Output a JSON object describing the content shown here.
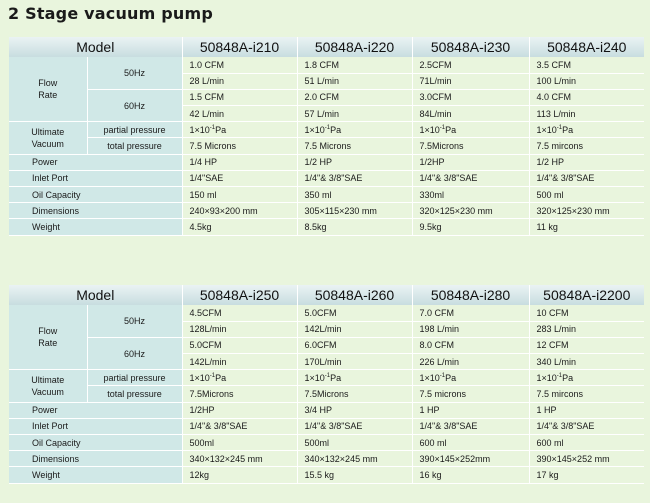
{
  "page_title": "2 Stage  vacuum pump",
  "tables": [
    {
      "header": {
        "model_label": "Model",
        "models": [
          "50848A-i210",
          "50848A-i220",
          "50848A-i230",
          "50848A-i240"
        ]
      },
      "flow_rate": {
        "label_line1": "Flow",
        "label_line2": "Rate",
        "rows": [
          {
            "freq": "50Hz",
            "cfm": [
              "1.0 CFM",
              "1.8 CFM",
              "2.5CFM",
              "3.5 CFM"
            ],
            "lmin": [
              "28 L/min",
              "51 L/min",
              "71L/min",
              "100 L/min"
            ]
          },
          {
            "freq": "60Hz",
            "cfm": [
              "1.5 CFM",
              "2.0 CFM",
              "3.0CFM",
              "4.0 CFM"
            ],
            "lmin": [
              "42 L/min",
              "57 L/min",
              "84L/min",
              "113 L/min"
            ]
          }
        ]
      },
      "ultimate_vacuum": {
        "label_line1": "Ultimate",
        "label_line2": "Vacuum",
        "partial_label": "partial pressure",
        "partial": [
          {
            "base": "1×10",
            "exp": "-1",
            "unit": "Pa"
          },
          {
            "base": "1×10",
            "exp": "-1",
            "unit": "Pa"
          },
          {
            "base": "1×10",
            "exp": "-1",
            "unit": "Pa"
          },
          {
            "base": "1×10",
            "exp": "-1",
            "unit": "Pa"
          }
        ],
        "total_label": "total pressure",
        "total": [
          "7.5 Microns",
          "7.5 Microns",
          "7.5Microns",
          "7.5 mircons"
        ]
      },
      "rows": [
        {
          "label": "Power",
          "values": [
            "1/4 HP",
            "1/2 HP",
            "1/2HP",
            "1/2 HP"
          ]
        },
        {
          "label": "Inlet Port",
          "values": [
            "1/4\"SAE",
            "1/4\"& 3/8\"SAE",
            "1/4\"& 3/8\"SAE",
            "1/4\"& 3/8\"SAE"
          ]
        },
        {
          "label": "Oil Capacity",
          "values": [
            "150 ml",
            "350 ml",
            "330ml",
            "500 ml"
          ]
        },
        {
          "label": "Dimensions",
          "values": [
            "240×93×200  mm",
            "305×115×230  mm",
            "320×125×230 mm",
            "320×125×230  mm"
          ]
        },
        {
          "label": "Weight",
          "values": [
            "4.5kg",
            "8.5kg",
            "9.5kg",
            "11 kg"
          ]
        }
      ]
    },
    {
      "header": {
        "model_label": "Model",
        "models": [
          "50848A-i250",
          "50848A-i260",
          "50848A-i280",
          "50848A-i2200"
        ]
      },
      "flow_rate": {
        "label_line1": "Flow",
        "label_line2": "Rate",
        "rows": [
          {
            "freq": "50Hz",
            "cfm": [
              "4.5CFM",
              "5.0CFM",
              "7.0 CFM",
              "10 CFM"
            ],
            "lmin": [
              "128L/min",
              "142L/min",
              "198 L/min",
              "283 L/min"
            ]
          },
          {
            "freq": "60Hz",
            "cfm": [
              "5.0CFM",
              "6.0CFM",
              "8.0 CFM",
              "12 CFM"
            ],
            "lmin": [
              "142L/min",
              "170L/min",
              "226 L/min",
              "340 L/min"
            ]
          }
        ]
      },
      "ultimate_vacuum": {
        "label_line1": "Ultimate",
        "label_line2": "Vacuum",
        "partial_label": "partial pressure",
        "partial": [
          {
            "base": "1×10",
            "exp": "-1",
            "unit": "Pa"
          },
          {
            "base": "1×10",
            "exp": "-1",
            "unit": "Pa"
          },
          {
            "base": "1×10",
            "exp": "-1",
            "unit": "Pa"
          },
          {
            "base": "1×10",
            "exp": "-1",
            "unit": "Pa"
          }
        ],
        "total_label": "total pressure",
        "total": [
          "7.5Microns",
          "7.5Microns",
          "7.5 microns",
          "7.5 mircons"
        ]
      },
      "rows": [
        {
          "label": "Power",
          "values": [
            "1/2HP",
            "3/4 HP",
            "1 HP",
            "1 HP"
          ]
        },
        {
          "label": "Inlet Port",
          "values": [
            "1/4\"& 3/8\"SAE",
            "1/4\"& 3/8\"SAE",
            "1/4\"& 3/8\"SAE",
            "1/4\"& 3/8\"SAE"
          ]
        },
        {
          "label": "Oil Capacity",
          "values": [
            "500ml",
            "500ml",
            "600 ml",
            "600 ml"
          ]
        },
        {
          "label": "Dimensions",
          "values": [
            "340×132×245 mm",
            "340×132×245 mm",
            "390×145×252mm",
            "390×145×252  mm"
          ]
        },
        {
          "label": "Weight",
          "values": [
            "12kg",
            "15.5 kg",
            "16 kg",
            "17 kg"
          ]
        }
      ]
    }
  ]
}
